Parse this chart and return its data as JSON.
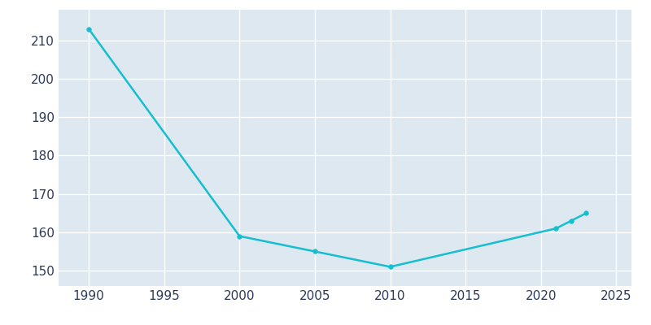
{
  "years": [
    1990,
    2000,
    2005,
    2010,
    2021,
    2022,
    2023
  ],
  "population": [
    213,
    159,
    155,
    151,
    161,
    163,
    165
  ],
  "line_color": "#17BECF",
  "marker_color": "#17BECF",
  "plot_bg_color": "#DDE8F0",
  "fig_bg_color": "#FFFFFF",
  "grid_color": "#FFFFFF",
  "axis_label_color": "#2D3A5A",
  "xlim": [
    1988,
    2026
  ],
  "ylim": [
    146,
    218
  ],
  "xticks": [
    1990,
    1995,
    2000,
    2005,
    2010,
    2015,
    2020,
    2025
  ],
  "yticks": [
    150,
    160,
    170,
    180,
    190,
    200,
    210
  ],
  "figsize": [
    8.0,
    4.0
  ],
  "dpi": 100,
  "linewidth": 1.8,
  "markersize": 4
}
